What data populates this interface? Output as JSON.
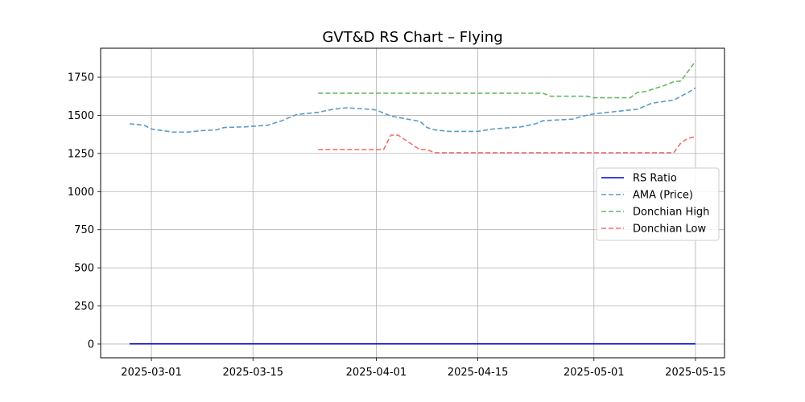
{
  "chart_data": {
    "type": "line",
    "title": "GVT&D RS Chart – Flying",
    "xlabel": "",
    "ylabel": "",
    "x_ticks": [
      "2025-03-01",
      "2025-03-15",
      "2025-04-01",
      "2025-04-15",
      "2025-05-01",
      "2025-05-15"
    ],
    "y_ticks": [
      0,
      250,
      500,
      750,
      1000,
      1250,
      1500,
      1750
    ],
    "xlim": [
      "2025-02-22",
      "2025-05-19"
    ],
    "ylim": [
      -90,
      1940
    ],
    "grid": true,
    "legend_position": "center-right",
    "series": [
      {
        "name": "RS Ratio",
        "color": "#0000cc",
        "style": "solid",
        "points": [
          [
            "2025-02-26",
            1
          ],
          [
            "2025-05-15",
            1
          ]
        ]
      },
      {
        "name": "AMA (Price)",
        "color": "#5b9bc8",
        "style": "dashed",
        "points": [
          [
            "2025-02-26",
            1445
          ],
          [
            "2025-02-28",
            1435
          ],
          [
            "2025-03-01",
            1410
          ],
          [
            "2025-03-04",
            1390
          ],
          [
            "2025-03-06",
            1390
          ],
          [
            "2025-03-08",
            1400
          ],
          [
            "2025-03-10",
            1405
          ],
          [
            "2025-03-11",
            1420
          ],
          [
            "2025-03-14",
            1425
          ],
          [
            "2025-03-17",
            1435
          ],
          [
            "2025-03-19",
            1465
          ],
          [
            "2025-03-21",
            1505
          ],
          [
            "2025-03-24",
            1520
          ],
          [
            "2025-03-26",
            1540
          ],
          [
            "2025-03-28",
            1550
          ],
          [
            "2025-03-31",
            1540
          ],
          [
            "2025-04-01",
            1535
          ],
          [
            "2025-04-03",
            1495
          ],
          [
            "2025-04-07",
            1460
          ],
          [
            "2025-04-08",
            1420
          ],
          [
            "2025-04-09",
            1405
          ],
          [
            "2025-04-11",
            1395
          ],
          [
            "2025-04-14",
            1395
          ],
          [
            "2025-04-15",
            1395
          ],
          [
            "2025-04-17",
            1410
          ],
          [
            "2025-04-21",
            1425
          ],
          [
            "2025-04-23",
            1445
          ],
          [
            "2025-04-24",
            1465
          ],
          [
            "2025-04-28",
            1475
          ],
          [
            "2025-04-30",
            1500
          ],
          [
            "2025-05-01",
            1510
          ],
          [
            "2025-05-04",
            1525
          ],
          [
            "2025-05-06",
            1535
          ],
          [
            "2025-05-07",
            1540
          ],
          [
            "2025-05-08",
            1560
          ],
          [
            "2025-05-09",
            1580
          ],
          [
            "2025-05-12",
            1600
          ],
          [
            "2025-05-13",
            1625
          ],
          [
            "2025-05-14",
            1650
          ],
          [
            "2025-05-15",
            1680
          ]
        ]
      },
      {
        "name": "Donchian High",
        "color": "#66b866",
        "style": "dashed",
        "points": [
          [
            "2025-03-24",
            1645
          ],
          [
            "2025-04-24",
            1645
          ],
          [
            "2025-04-25",
            1625
          ],
          [
            "2025-04-30",
            1625
          ],
          [
            "2025-05-01",
            1615
          ],
          [
            "2025-05-06",
            1615
          ],
          [
            "2025-05-07",
            1650
          ],
          [
            "2025-05-08",
            1655
          ],
          [
            "2025-05-11",
            1700
          ],
          [
            "2025-05-12",
            1720
          ],
          [
            "2025-05-13",
            1725
          ],
          [
            "2025-05-15",
            1855
          ]
        ]
      },
      {
        "name": "Donchian Low",
        "color": "#f07070",
        "style": "dashed",
        "points": [
          [
            "2025-03-24",
            1275
          ],
          [
            "2025-04-02",
            1275
          ],
          [
            "2025-04-03",
            1370
          ],
          [
            "2025-04-04",
            1370
          ],
          [
            "2025-04-07",
            1275
          ],
          [
            "2025-04-08",
            1275
          ],
          [
            "2025-04-09",
            1255
          ],
          [
            "2025-05-12",
            1255
          ],
          [
            "2025-05-13",
            1320
          ],
          [
            "2025-05-14",
            1350
          ],
          [
            "2025-05-15",
            1360
          ]
        ]
      }
    ]
  }
}
